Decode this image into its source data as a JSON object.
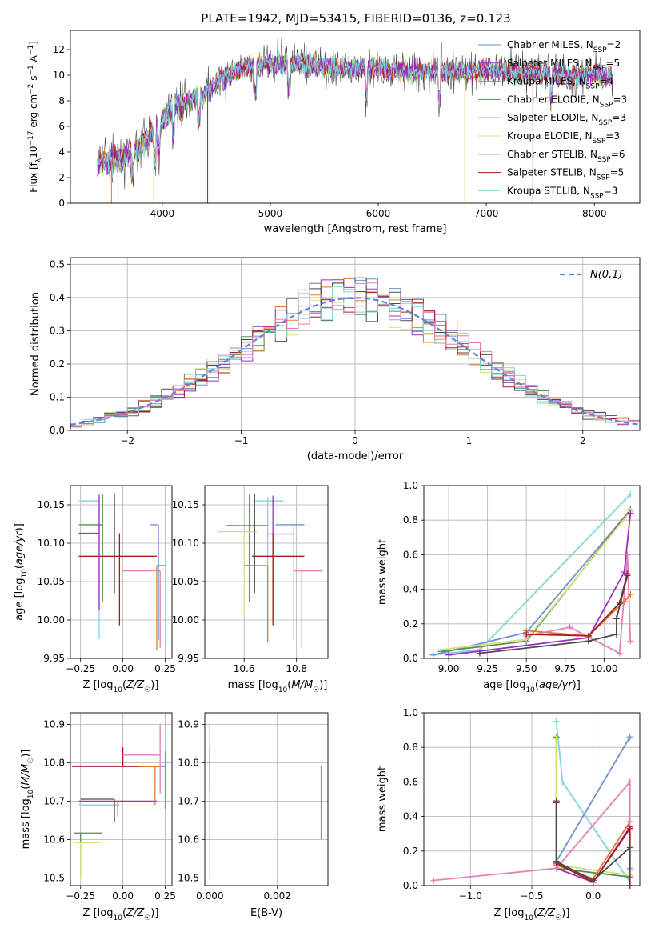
{
  "figure": {
    "title": "PLATE=1942, MJD=53415, FIBERID=0136, z=0.123"
  },
  "chart_data": [
    {
      "id": "spectrum",
      "type": "line",
      "title": "PLATE=1942, MJD=53415, FIBERID=0136, z=0.123",
      "xlabel": "wavelength [Angstrom, rest frame]",
      "ylabel": "Flux [f_λ 10^-17 erg cm^-2 s^-1 A^-1]",
      "xlim": [
        3150,
        8420
      ],
      "ylim": [
        0,
        13.5
      ],
      "xticks": [
        4000,
        5000,
        6000,
        7000,
        8000
      ],
      "yticks": [
        0,
        2,
        4,
        6,
        8,
        10,
        12
      ],
      "grid": false,
      "legend_position": "right",
      "continuum": [
        [
          3400,
          3.3
        ],
        [
          3600,
          3.4
        ],
        [
          3700,
          3.9
        ],
        [
          3800,
          4.6
        ],
        [
          3900,
          5.3
        ],
        [
          4000,
          6.3
        ],
        [
          4100,
          7.3
        ],
        [
          4200,
          7.9
        ],
        [
          4300,
          8.3
        ],
        [
          4400,
          8.6
        ],
        [
          4500,
          9.5
        ],
        [
          4600,
          10.0
        ],
        [
          4700,
          10.4
        ],
        [
          4800,
          10.6
        ],
        [
          4900,
          10.8
        ],
        [
          5000,
          10.9
        ],
        [
          5200,
          10.9
        ],
        [
          5400,
          10.8
        ],
        [
          5600,
          10.6
        ],
        [
          5800,
          10.6
        ],
        [
          6000,
          10.5
        ],
        [
          6200,
          10.3
        ],
        [
          6400,
          10.3
        ],
        [
          6600,
          10.3
        ],
        [
          6800,
          10.3
        ],
        [
          7000,
          10.4
        ],
        [
          7200,
          10.2
        ],
        [
          7400,
          10.2
        ],
        [
          7600,
          10.1
        ],
        [
          7800,
          10.0
        ],
        [
          8000,
          10.1
        ],
        [
          8170,
          9.8
        ]
      ],
      "series": [
        {
          "name": "Chabrier MILES",
          "nssp": 2,
          "color": "#6f8fcf"
        },
        {
          "name": "Salpeter MILES",
          "nssp": 5,
          "color": "#9b2fbf"
        },
        {
          "name": "Kroupa MILES",
          "nssp": 4,
          "color": "#e0792c"
        },
        {
          "name": "Chabrier ELODIE",
          "nssp": 3,
          "color": "#5b8c5a"
        },
        {
          "name": "Salpeter ELODIE",
          "nssp": 3,
          "color": "#a03fc0"
        },
        {
          "name": "Kroupa ELODIE",
          "nssp": 3,
          "color": "#d8e07a"
        },
        {
          "name": "Chabrier STELIB",
          "nssp": 6,
          "color": "#4a4a4a"
        },
        {
          "name": "Salpeter STELIB",
          "nssp": 5,
          "color": "#a81c1c"
        },
        {
          "name": "Kroupa STELIB",
          "nssp": 3,
          "color": "#7fd6d9"
        }
      ]
    },
    {
      "id": "residual_hist",
      "type": "histogram",
      "xlabel": "(data-model)/error",
      "ylabel": "Normed distribution",
      "xlim": [
        -2.5,
        2.5
      ],
      "ylim": [
        0,
        0.52
      ],
      "xticks": [
        -2,
        -1,
        0,
        1,
        2
      ],
      "yticks": [
        0.0,
        0.1,
        0.2,
        0.3,
        0.4,
        0.5
      ],
      "grid": true,
      "legend": {
        "label": "N(0,1)",
        "position": "top-right"
      },
      "bin_width": 0.1
    },
    {
      "id": "age_vs_Z",
      "type": "errorbar",
      "xlabel": "Z [log10(Z/Z☉)]",
      "ylabel": "age  [log10(age/yr)]",
      "xlim": [
        -0.31,
        0.29
      ],
      "ylim": [
        9.95,
        10.175
      ],
      "xticks": [
        -0.25,
        0.0,
        0.25
      ],
      "yticks": [
        9.95,
        10.0,
        10.05,
        10.1,
        10.15
      ],
      "points": [
        {
          "x": -0.14,
          "y": 10.155,
          "xerr": [
            0.12,
            0.0
          ],
          "yerr": [
            0.18,
            0.005
          ],
          "color": "#7fd6d9"
        },
        {
          "x": -0.12,
          "y": 10.124,
          "xerr": [
            0.14,
            0.0
          ],
          "yerr": [
            0.1,
            0.04
          ],
          "color": "#5b8c5a"
        },
        {
          "x": -0.14,
          "y": 10.113,
          "xerr": [
            0.12,
            0.0
          ],
          "yerr": [
            0.1,
            0.05
          ],
          "color": "#9b2fbf"
        },
        {
          "x": -0.02,
          "y": 10.083,
          "xerr": [
            0.24,
            0.22
          ],
          "yerr": [
            0.09,
            0.03
          ],
          "color": "#a81c1c"
        },
        {
          "x": 0.2,
          "y": 10.071,
          "xerr": [
            0.0,
            0.05
          ],
          "yerr": [
            0.11,
            0.0
          ],
          "color": "#e0792c"
        },
        {
          "x": 0.22,
          "y": 10.064,
          "xerr": [
            0.22,
            0.0
          ],
          "yerr": [
            0.1,
            0.0
          ],
          "color": "#e07fb8"
        },
        {
          "x": 0.21,
          "y": 10.124,
          "xerr": [
            0.05,
            0.0
          ],
          "yerr": [
            0.15,
            0.0
          ],
          "color": "#6f8fcf"
        },
        {
          "x": -0.05,
          "y": 10.125,
          "xerr": [
            0.0,
            0.0
          ],
          "yerr": [
            0.09,
            0.04
          ],
          "color": "#4a4a4a"
        }
      ]
    },
    {
      "id": "age_vs_mass",
      "type": "errorbar",
      "xlabel": "mass [log10(M/M☉)]",
      "ylabel": "",
      "xlim": [
        10.45,
        10.92
      ],
      "ylim": [
        9.95,
        10.175
      ],
      "xticks": [
        10.6,
        10.8
      ],
      "yticks": [
        9.95,
        10.0,
        10.05,
        10.1,
        10.15
      ],
      "points": [
        {
          "x": 10.69,
          "y": 10.155,
          "xerr": [
            0.05,
            0.06
          ],
          "yerr": [
            0.18,
            0.005
          ],
          "color": "#7fd6d9"
        },
        {
          "x": 10.62,
          "y": 10.123,
          "xerr": [
            0.09,
            0.07
          ],
          "yerr": [
            0.1,
            0.04
          ],
          "color": "#5b8c5a"
        },
        {
          "x": 10.6,
          "y": 10.115,
          "xerr": [
            0.1,
            0.05
          ],
          "yerr": [
            0.11,
            0.0
          ],
          "color": "#d8e07a"
        },
        {
          "x": 10.71,
          "y": 10.112,
          "xerr": [
            0.02,
            0.08
          ],
          "yerr": [
            0.11,
            0.05
          ],
          "color": "#9b2fbf"
        },
        {
          "x": 10.71,
          "y": 10.083,
          "xerr": [
            0.08,
            0.12
          ],
          "yerr": [
            0.09,
            0.03
          ],
          "color": "#a81c1c"
        },
        {
          "x": 10.69,
          "y": 10.071,
          "xerr": [
            0.09,
            0.0
          ],
          "yerr": [
            0.1,
            0.0
          ],
          "color": "#e0792c"
        },
        {
          "x": 10.82,
          "y": 10.064,
          "xerr": [
            0.03,
            0.08
          ],
          "yerr": [
            0.1,
            0.0
          ],
          "color": "#e07fb8"
        },
        {
          "x": 10.79,
          "y": 10.124,
          "xerr": [
            0.07,
            0.04
          ],
          "yerr": [
            0.15,
            0.0
          ],
          "color": "#6f8fcf"
        },
        {
          "x": 10.64,
          "y": 10.125,
          "xerr": [
            0.0,
            0.0
          ],
          "yerr": [
            0.09,
            0.04
          ],
          "color": "#4a4a4a"
        }
      ]
    },
    {
      "id": "mass_weight_vs_age",
      "type": "line",
      "xlabel": "age  [log10(age/yr)]",
      "ylabel": "mass weight",
      "xlim": [
        8.84,
        10.23
      ],
      "ylim": [
        0.0,
        1.0
      ],
      "xticks": [
        9.0,
        9.25,
        9.5,
        9.75,
        10.0
      ],
      "yticks": [
        0.0,
        0.2,
        0.4,
        0.6,
        0.8,
        1.0
      ],
      "series": [
        {
          "color": "#7fd6d9",
          "points": [
            [
              8.9,
              0.02
            ],
            [
              9.2,
              0.05
            ],
            [
              10.17,
              0.95
            ]
          ]
        },
        {
          "color": "#6f8fcf",
          "points": [
            [
              8.9,
              0.02
            ],
            [
              9.5,
              0.15
            ],
            [
              10.17,
              0.86
            ]
          ]
        },
        {
          "color": "#5b8c5a",
          "points": [
            [
              8.95,
              0.04
            ],
            [
              9.5,
              0.1
            ],
            [
              10.17,
              0.86
            ]
          ]
        },
        {
          "color": "#d8e07a",
          "points": [
            [
              8.95,
              0.05
            ],
            [
              9.5,
              0.11
            ],
            [
              10.17,
              0.85
            ]
          ]
        },
        {
          "color": "#9b2fbf",
          "points": [
            [
              9.0,
              0.02
            ],
            [
              9.9,
              0.12
            ],
            [
              10.13,
              0.5
            ],
            [
              10.17,
              0.84
            ]
          ]
        },
        {
          "color": "#e0792c",
          "points": [
            [
              9.5,
              0.16
            ],
            [
              9.9,
              0.13
            ],
            [
              10.13,
              0.33
            ],
            [
              10.17,
              0.37
            ]
          ]
        },
        {
          "color": "#e07fb8",
          "points": [
            [
              9.5,
              0.13
            ],
            [
              9.78,
              0.18
            ],
            [
              10.1,
              0.03
            ],
            [
              10.15,
              0.6
            ],
            [
              10.17,
              0.1
            ]
          ]
        },
        {
          "color": "#a81c1c",
          "points": [
            [
              9.5,
              0.14
            ],
            [
              9.9,
              0.13
            ],
            [
              10.1,
              0.32
            ],
            [
              10.15,
              0.49
            ]
          ]
        },
        {
          "color": "#4a4a4a",
          "points": [
            [
              9.2,
              0.03
            ],
            [
              9.9,
              0.1
            ],
            [
              10.08,
              0.14
            ],
            [
              10.08,
              0.23
            ],
            [
              10.15,
              0.48
            ]
          ]
        }
      ]
    },
    {
      "id": "mass_vs_Z",
      "type": "errorbar",
      "xlabel": "Z [log10(Z/Z☉)]",
      "ylabel": "mass [log10(M/M☉)]",
      "xlim": [
        -0.31,
        0.29
      ],
      "ylim": [
        10.48,
        10.93
      ],
      "xticks": [
        -0.25,
        0.0,
        0.25
      ],
      "yticks": [
        10.5,
        10.6,
        10.7,
        10.8,
        10.9
      ],
      "points": [
        {
          "x": -0.25,
          "y": 10.617,
          "xerr": [
            0.04,
            0.13
          ],
          "yerr": [
            0.11,
            0.0
          ],
          "color": "#5b8c5a"
        },
        {
          "x": -0.25,
          "y": 10.592,
          "xerr": [
            0.04,
            0.12
          ],
          "yerr": [
            0.1,
            0.0
          ],
          "color": "#d8e07a"
        },
        {
          "x": -0.03,
          "y": 10.7,
          "xerr": [
            0.23,
            0.23
          ],
          "yerr": [
            0.04,
            0.0
          ],
          "color": "#9b2fbf"
        },
        {
          "x": 0.0,
          "y": 10.79,
          "xerr": [
            0.3,
            0.22
          ],
          "yerr": [
            0.0,
            0.05
          ],
          "color": "#a81c1c"
        },
        {
          "x": 0.19,
          "y": 10.79,
          "xerr": [
            0.1,
            0.04
          ],
          "yerr": [
            0.1,
            0.0
          ],
          "color": "#e0792c"
        },
        {
          "x": 0.22,
          "y": 10.82,
          "xerr": [
            0.22,
            0.0
          ],
          "yerr": [
            0.1,
            0.08
          ],
          "color": "#e07fb8"
        },
        {
          "x": 0.25,
          "y": 10.79,
          "xerr": [
            0.02,
            0.0
          ],
          "yerr": [
            0.11,
            0.04
          ],
          "color": "#6f8fcf"
        },
        {
          "x": -0.22,
          "y": 10.69,
          "xerr": [
            0.04,
            0.2
          ],
          "yerr": [
            0.0,
            0.0
          ],
          "color": "#7fd6d9"
        },
        {
          "x": -0.05,
          "y": 10.705,
          "xerr": [
            0.2,
            0.0
          ],
          "yerr": [
            0.06,
            0.0
          ],
          "color": "#4a4a4a"
        }
      ]
    },
    {
      "id": "mass_vs_ebv",
      "type": "errorbar",
      "xlabel": "E(B-V)",
      "ylabel": "",
      "xlim": [
        -0.00015,
        0.0035
      ],
      "ylim": [
        10.48,
        10.93
      ],
      "xticks": [
        0.0,
        0.002
      ],
      "yticks": [
        10.5,
        10.6,
        10.7,
        10.8,
        10.9
      ],
      "points": [
        {
          "x": 0.0,
          "y": 10.79,
          "yerr": [
            0.06,
            0.05
          ],
          "color": "#a81c1c"
        },
        {
          "x": 0.0,
          "y": 10.7,
          "yerr": [
            0.2,
            0.2
          ],
          "color": "#e07fb8"
        },
        {
          "x": 0.0,
          "y": 10.55,
          "yerr": [
            0.05,
            0.05
          ],
          "color": "#d8e07a"
        },
        {
          "x": 0.0033,
          "y": 10.7,
          "yerr": [
            0.1,
            0.09
          ],
          "color": "#e0792c"
        }
      ]
    },
    {
      "id": "mass_weight_vs_Z",
      "type": "line",
      "xlabel": "Z [log10(Z/Z☉)]",
      "ylabel": "mass weight",
      "xlim": [
        -1.38,
        0.38
      ],
      "ylim": [
        0.0,
        1.0
      ],
      "xticks": [
        -1.0,
        -0.5,
        0.0
      ],
      "yticks": [
        0.0,
        0.2,
        0.4,
        0.6,
        0.8,
        1.0
      ],
      "series": [
        {
          "color": "#7fd6d9",
          "points": [
            [
              -0.3,
              0.95
            ],
            [
              -0.25,
              0.6
            ],
            [
              0.3,
              0.02
            ]
          ]
        },
        {
          "color": "#6f8fcf",
          "points": [
            [
              -0.3,
              0.14
            ],
            [
              0.3,
              0.86
            ]
          ]
        },
        {
          "color": "#5b8c5a",
          "points": [
            [
              -0.3,
              0.86
            ],
            [
              -0.3,
              0.1
            ],
            [
              0.3,
              0.05
            ]
          ]
        },
        {
          "color": "#d8e07a",
          "points": [
            [
              -0.3,
              0.85
            ],
            [
              -0.3,
              0.12
            ],
            [
              0.3,
              0.06
            ]
          ]
        },
        {
          "color": "#9b2fbf",
          "points": [
            [
              -0.3,
              0.1
            ],
            [
              0.0,
              0.02
            ],
            [
              0.3,
              0.34
            ]
          ]
        },
        {
          "color": "#e0792c",
          "points": [
            [
              -0.3,
              0.12
            ],
            [
              0.0,
              0.04
            ],
            [
              0.3,
              0.37
            ]
          ]
        },
        {
          "color": "#e07fb8",
          "points": [
            [
              -1.3,
              0.03
            ],
            [
              -0.3,
              0.1
            ],
            [
              0.3,
              0.6
            ],
            [
              0.3,
              0.1
            ]
          ]
        },
        {
          "color": "#a81c1c",
          "points": [
            [
              -0.3,
              0.49
            ],
            [
              -0.3,
              0.13
            ],
            [
              0.0,
              0.02
            ],
            [
              0.3,
              0.33
            ],
            [
              0.3,
              0.0
            ]
          ]
        },
        {
          "color": "#4a4a4a",
          "points": [
            [
              -0.3,
              0.48
            ],
            [
              -0.3,
              0.14
            ],
            [
              0.0,
              0.03
            ],
            [
              0.3,
              0.22
            ],
            [
              0.3,
              0.09
            ]
          ]
        }
      ]
    }
  ]
}
